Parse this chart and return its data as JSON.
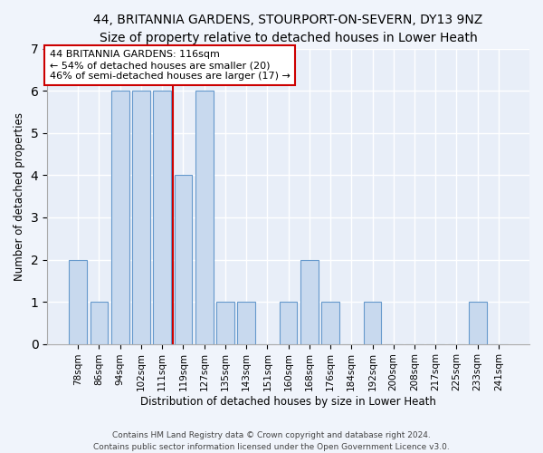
{
  "title1": "44, BRITANNIA GARDENS, STOURPORT-ON-SEVERN, DY13 9NZ",
  "title2": "Size of property relative to detached houses in Lower Heath",
  "xlabel": "Distribution of detached houses by size in Lower Heath",
  "ylabel": "Number of detached properties",
  "categories": [
    "78sqm",
    "86sqm",
    "94sqm",
    "102sqm",
    "111sqm",
    "119sqm",
    "127sqm",
    "135sqm",
    "143sqm",
    "151sqm",
    "160sqm",
    "168sqm",
    "176sqm",
    "184sqm",
    "192sqm",
    "200sqm",
    "208sqm",
    "217sqm",
    "225sqm",
    "233sqm",
    "241sqm"
  ],
  "values": [
    2,
    1,
    6,
    6,
    6,
    4,
    6,
    1,
    1,
    0,
    1,
    2,
    1,
    0,
    1,
    0,
    0,
    0,
    0,
    1,
    0
  ],
  "bar_color": "#c8d9ee",
  "bar_edge_color": "#6699cc",
  "reference_line_x": 4.5,
  "reference_line_color": "#cc0000",
  "annotation_line1": "44 BRITANNIA GARDENS: 116sqm",
  "annotation_line2": "← 54% of detached houses are smaller (20)",
  "annotation_line3": "46% of semi-detached houses are larger (17) →",
  "annotation_box_facecolor": "#ffffff",
  "annotation_box_edgecolor": "#cc0000",
  "ylim": [
    0,
    7
  ],
  "yticks": [
    0,
    1,
    2,
    3,
    4,
    5,
    6,
    7
  ],
  "footer1": "Contains HM Land Registry data © Crown copyright and database right 2024.",
  "footer2": "Contains public sector information licensed under the Open Government Licence v3.0.",
  "fig_facecolor": "#f0f4fb",
  "plot_facecolor": "#e8eef8",
  "grid_color": "#ffffff",
  "title_fontsize": 10,
  "axis_label_fontsize": 8.5,
  "tick_fontsize": 7.5,
  "annotation_fontsize": 8,
  "footer_fontsize": 6.5,
  "bar_width": 0.85
}
